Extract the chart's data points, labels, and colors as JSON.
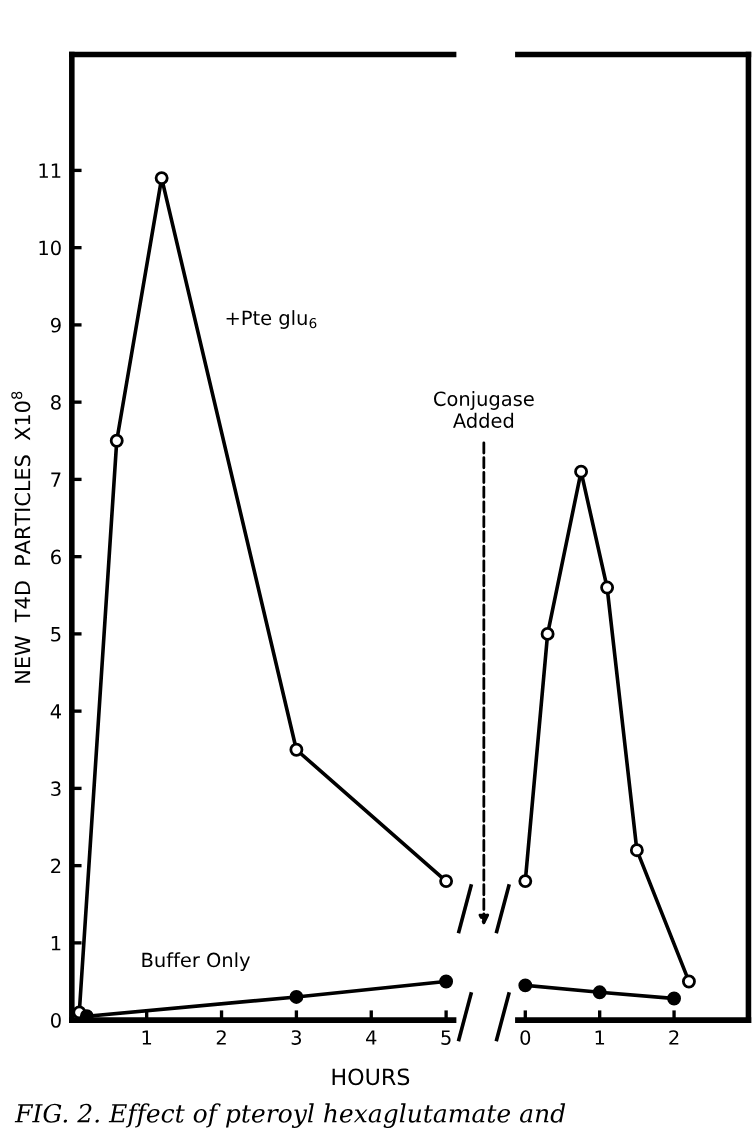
{
  "chart_data": [
    {
      "type": "line",
      "ylabel": "NEW  T4D  PARTICLES  X10$^{8}$",
      "xlabel": "HOURS",
      "xlim": [
        0,
        5.1
      ],
      "xticks": [
        1,
        2,
        3,
        4,
        5
      ],
      "ylim": [
        0,
        12.5
      ],
      "yticks": [
        0,
        1,
        2,
        3,
        4,
        5,
        6,
        7,
        8,
        9,
        10,
        11
      ],
      "grid": false,
      "legend": false,
      "tick_labels": "xy",
      "series": [
        {
          "name": "+Pte glu$_{6}$",
          "color": "#000000",
          "marker": "circle",
          "x": [
            0.1,
            0.6,
            1.2,
            3,
            5
          ],
          "values": [
            0.1,
            7.5,
            10.9,
            3.5,
            1.8
          ]
        },
        {
          "name": "Buffer Only",
          "color": "#000000",
          "marker": "circle",
          "x": [
            0.2,
            3,
            5
          ],
          "values": [
            0.05,
            0.3,
            0.5
          ]
        }
      ],
      "annotations": [
        "Conjugase\nAdded",
        "FIG. 2. Effect of pteroyl hexaglutamate and"
      ]
    },
    {
      "type": "line",
      "xlim": [
        -0.1,
        3.0
      ],
      "xticks": [
        0,
        1,
        2
      ],
      "ylim": [
        0,
        12.5
      ],
      "grid": false,
      "legend": false,
      "tick_labels": "x",
      "series": [
        {
          "color": "#000000",
          "marker": "circle",
          "x": [
            0,
            0.3,
            0.75,
            1.1,
            1.5,
            2.2
          ],
          "values": [
            1.8,
            5.0,
            7.1,
            5.6,
            2.2,
            0.5
          ]
        },
        {
          "color": "#000000",
          "marker": "circle",
          "x": [
            0,
            1,
            2
          ],
          "values": [
            0.45,
            0.36,
            0.28
          ]
        }
      ]
    }
  ]
}
